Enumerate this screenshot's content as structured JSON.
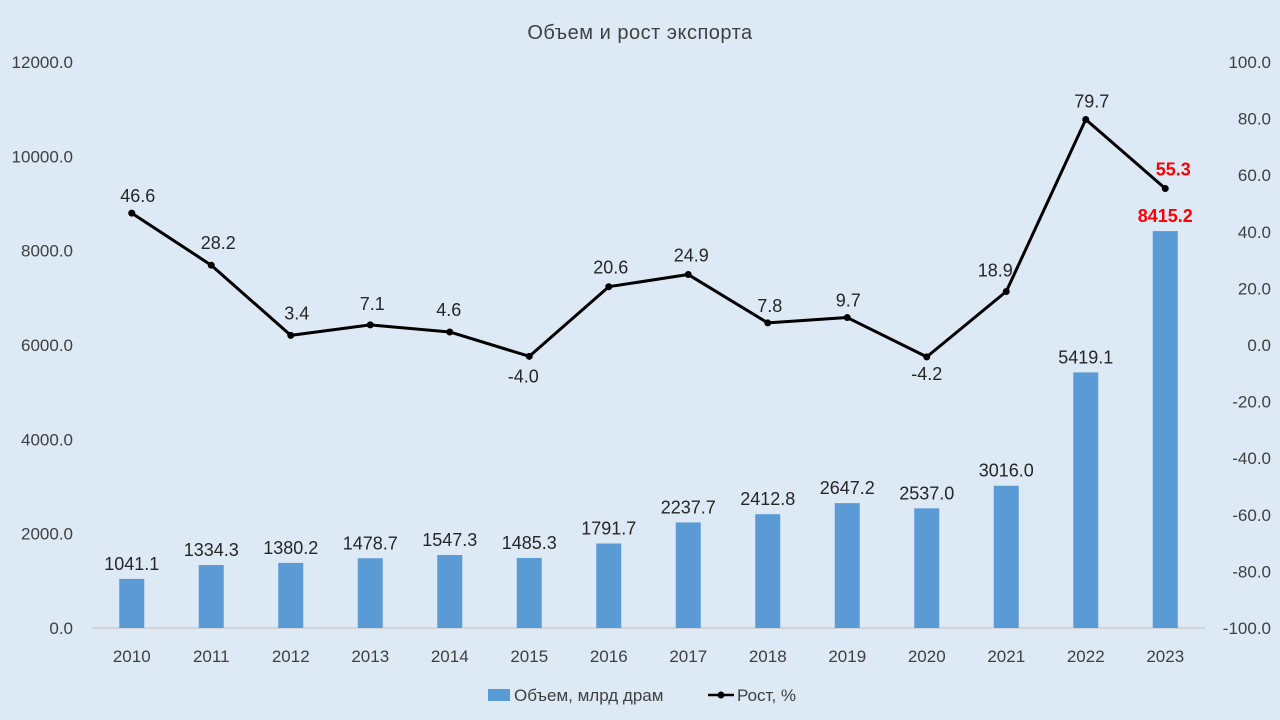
{
  "chart_data": {
    "type": "bar+line",
    "title": "Объем и рост экспорта",
    "categories": [
      "2010",
      "2011",
      "2012",
      "2013",
      "2014",
      "2015",
      "2016",
      "2017",
      "2018",
      "2019",
      "2020",
      "2021",
      "2022",
      "2023"
    ],
    "series": [
      {
        "name": "Объем, млрд драм",
        "type": "bar",
        "axis": "left",
        "color": "#5b9bd5",
        "values": [
          1041.1,
          1334.3,
          1380.2,
          1478.7,
          1547.3,
          1485.3,
          1791.7,
          2237.7,
          2412.8,
          2647.2,
          2537.0,
          3016.0,
          5419.1,
          8415.2
        ],
        "labels": [
          "1041.1",
          "1334.3",
          "1380.2",
          "1478.7",
          "1547.3",
          "1485.3",
          "1791.7",
          "2237.7",
          "2412.8",
          "2647.2",
          "2537.0",
          "3016.0",
          "5419.1",
          "8415.2"
        ]
      },
      {
        "name": "Рост, %",
        "type": "line",
        "axis": "right",
        "color": "#000000",
        "values": [
          46.6,
          28.2,
          3.4,
          7.1,
          4.6,
          -4.0,
          20.6,
          24.9,
          7.8,
          9.7,
          -4.2,
          18.9,
          79.7,
          55.3
        ],
        "labels": [
          "46.6",
          "28.2",
          "3.4",
          "7.1",
          "4.6",
          "-4.0",
          "20.6",
          "24.9",
          "7.8",
          "9.7",
          "-4.2",
          "18.9",
          "79.7",
          "55.3"
        ]
      }
    ],
    "left_axis": {
      "ylim": [
        0,
        12000
      ],
      "ticks": [
        "0.0",
        "2000.0",
        "4000.0",
        "6000.0",
        "8000.0",
        "10000.0",
        "12000.0"
      ]
    },
    "right_axis": {
      "ylim": [
        -100,
        100
      ],
      "ticks": [
        "-100.0",
        "-80.0",
        "-60.0",
        "-40.0",
        "-20.0",
        "0.0",
        "20.0",
        "40.0",
        "60.0",
        "80.0",
        "100.0"
      ]
    },
    "highlight_color": "#ff0000",
    "label_color": "#262626",
    "grid": false,
    "legend_position": "bottom"
  }
}
